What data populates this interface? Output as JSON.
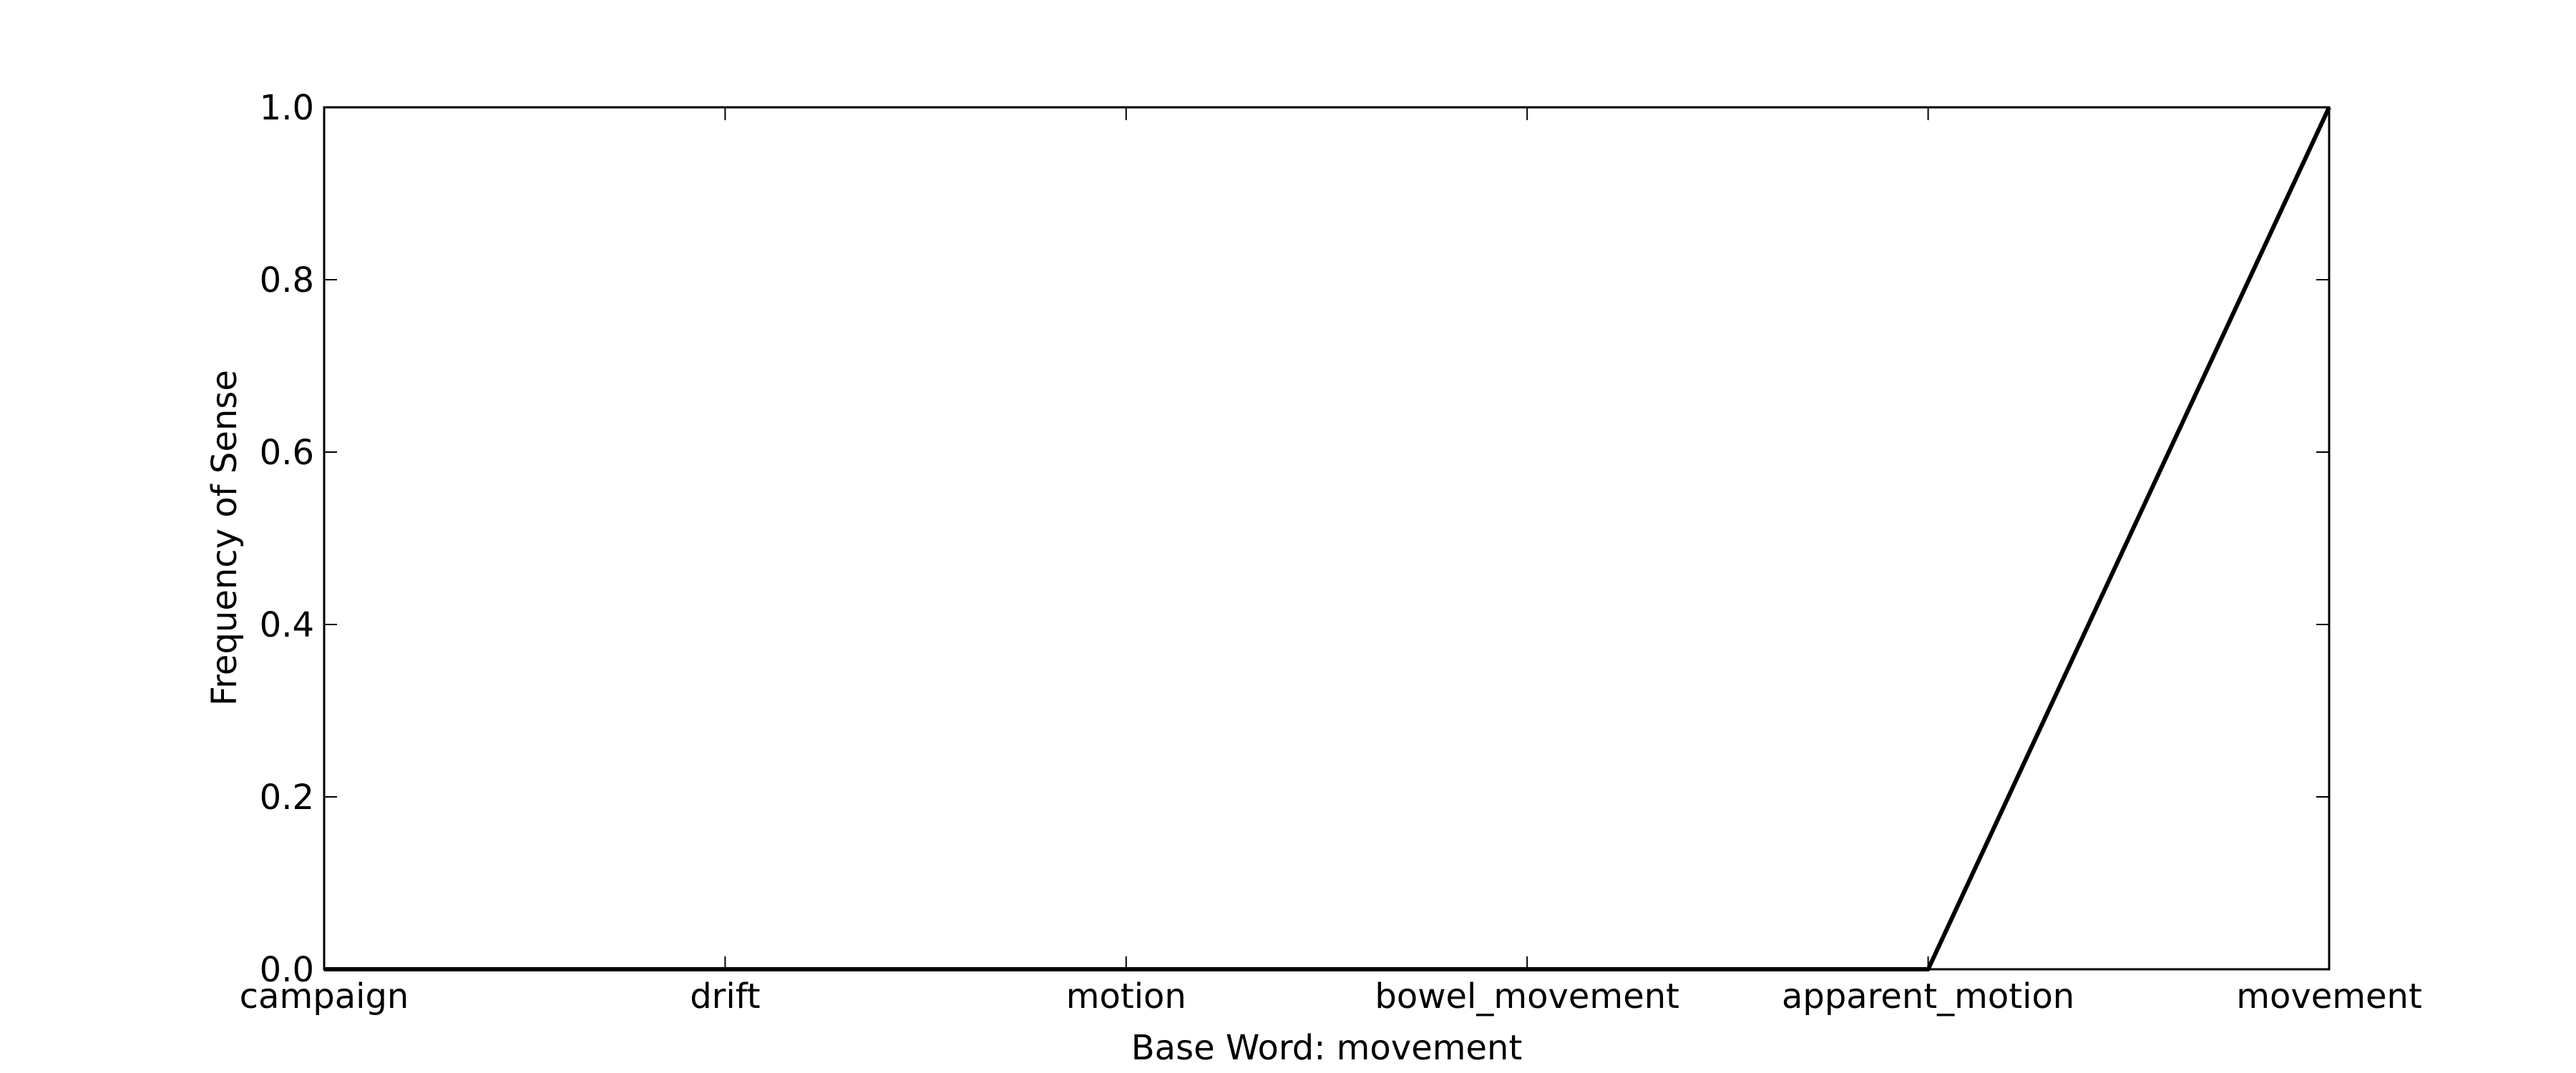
{
  "chart_data": {
    "type": "line",
    "title": "",
    "xlabel": "Base Word: movement",
    "ylabel": "Frequency of Sense",
    "categories": [
      "campaign",
      "drift",
      "motion",
      "bowel_movement",
      "apparent_motion",
      "movement"
    ],
    "series": [
      {
        "values": [
          0.0,
          0.0,
          0.0,
          0.0,
          0.0,
          1.0
        ],
        "color": "#000000"
      }
    ],
    "ylim": [
      0.0,
      1.0
    ],
    "yticks": [
      "0.0",
      "0.2",
      "0.4",
      "0.6",
      "0.8",
      "1.0"
    ],
    "grid": false,
    "legend": "none"
  }
}
